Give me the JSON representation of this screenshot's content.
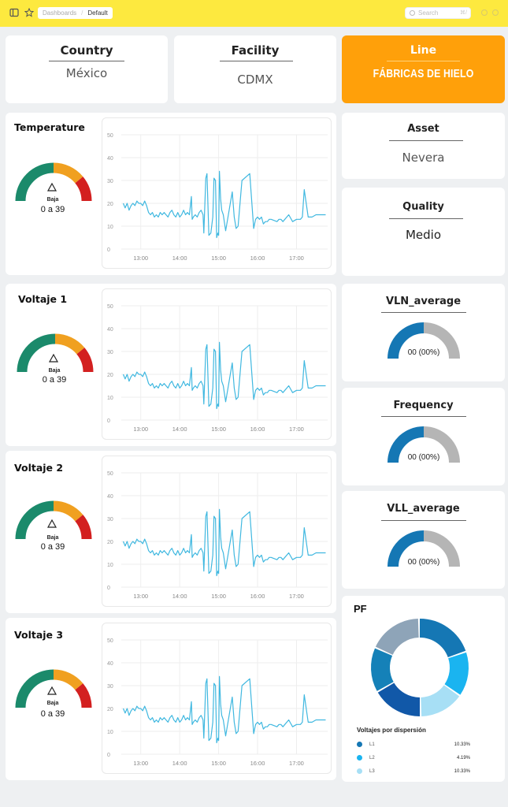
{
  "topbar": {
    "breadcrumb": [
      "Dashboards",
      "Default"
    ],
    "search_placeholder": "Search",
    "search_shortcut": "⌘/"
  },
  "filters": [
    {
      "label": "Country",
      "value": "México"
    },
    {
      "label": "Facility",
      "value": "CDMX"
    },
    {
      "label": "Line",
      "value": "FÁBRICAS DE HIELO"
    },
    {
      "label": "Asset",
      "value": "Nevera"
    },
    {
      "label": "Quality",
      "value": "Medio"
    }
  ],
  "metrics": [
    {
      "title": "Temperature",
      "gauge_label": "Baja",
      "gauge_range": "0 a 39"
    },
    {
      "title": "Voltaje 1",
      "gauge_label": "Baja",
      "gauge_range": "0 a 39"
    },
    {
      "title": "Voltaje 2",
      "gauge_label": "Baja",
      "gauge_range": "0 a 39"
    },
    {
      "title": "Voltaje 3",
      "gauge_label": "Baja",
      "gauge_range": "0 a 39"
    }
  ],
  "colors": {
    "topbar": "#fde93f",
    "line_card": "#ffa00a",
    "gauge_low": "#1b8a6b",
    "gauge_mid": "#f0a020",
    "gauge_high": "#d32020",
    "series": "#40b8e0",
    "semi_fill": "#1577b4",
    "semi_rest": "#b5b5b5"
  },
  "chart_data": {
    "type": "line",
    "x_ticks": [
      "13:00",
      "14:00",
      "15:00",
      "16:00",
      "17:00"
    ],
    "y_ticks": [
      "0",
      "10",
      "20",
      "30",
      "40",
      "50"
    ],
    "ylim": [
      0,
      50
    ],
    "xlim": [
      12.5,
      17.8
    ],
    "x": [
      12.55,
      12.6,
      12.65,
      12.7,
      12.75,
      12.8,
      12.85,
      12.9,
      12.95,
      13.0,
      13.05,
      13.1,
      13.15,
      13.2,
      13.25,
      13.3,
      13.35,
      13.4,
      13.45,
      13.5,
      13.55,
      13.6,
      13.65,
      13.7,
      13.75,
      13.8,
      13.85,
      13.9,
      13.95,
      14.0,
      14.05,
      14.1,
      14.15,
      14.2,
      14.25,
      14.3,
      14.32,
      14.35,
      14.4,
      14.45,
      14.5,
      14.55,
      14.6,
      14.62,
      14.67,
      14.7,
      14.75,
      14.8,
      14.85,
      14.88,
      14.92,
      14.95,
      14.98,
      15.0,
      15.02,
      15.05,
      15.08,
      15.12,
      15.18,
      15.22,
      15.3,
      15.35,
      15.4,
      15.45,
      15.5,
      15.6,
      15.8,
      15.9,
      15.95,
      16.0,
      16.05,
      16.1,
      16.15,
      16.2,
      16.25,
      16.3,
      16.35,
      16.5,
      16.55,
      16.6,
      16.65,
      16.8,
      16.9,
      17.0,
      17.1,
      17.15,
      17.2,
      17.3,
      17.4,
      17.5,
      17.6,
      17.7,
      17.75
    ],
    "series": [
      {
        "values": [
          20,
          18,
          20,
          17,
          19,
          20,
          19,
          21,
          20,
          20,
          19,
          21,
          19,
          16,
          15,
          16,
          14,
          15,
          14,
          16,
          15,
          16,
          15,
          14,
          16,
          17,
          15,
          14,
          16,
          14,
          15,
          17,
          15,
          16,
          15,
          23,
          13,
          14,
          15,
          14,
          16,
          17,
          15,
          7,
          31,
          33,
          6,
          7,
          14,
          31,
          30,
          5,
          7,
          6,
          34,
          22,
          17,
          15,
          8,
          12,
          20,
          25,
          14,
          9,
          10,
          30,
          33,
          9,
          13,
          14,
          13,
          14,
          11,
          12,
          12,
          13,
          13,
          12,
          13,
          13,
          12,
          15,
          12,
          13,
          13,
          14,
          26,
          14,
          14,
          15,
          15,
          15,
          15
        ]
      }
    ]
  },
  "side_metrics": [
    {
      "title": "VLN_average",
      "value": "00 (00%)",
      "fill_fraction": 0.5
    },
    {
      "title": "Frequency",
      "value": "00 (00%)",
      "fill_fraction": 0.5
    },
    {
      "title": "VLL_average",
      "value": "00 (00%)",
      "fill_fraction": 0.5
    }
  ],
  "pf": {
    "title": "PF",
    "legend_title": "Voltajes por dispersión",
    "legend": [
      {
        "name": "L1",
        "value": "10.33%",
        "color": "#1577b4"
      },
      {
        "name": "L2",
        "value": "4.19%",
        "color": "#1ab4f0"
      },
      {
        "name": "L3",
        "value": "10.33%",
        "color": "#a7dff5"
      }
    ],
    "donut": [
      {
        "value": 20,
        "color": "#1577b4"
      },
      {
        "value": 15,
        "color": "#1ab4f0"
      },
      {
        "value": 15,
        "color": "#a7dff5"
      },
      {
        "value": 17,
        "color": "#1158a8"
      },
      {
        "value": 15,
        "color": "#1581b8"
      },
      {
        "value": 18,
        "color": "#8ea4b8"
      }
    ]
  }
}
